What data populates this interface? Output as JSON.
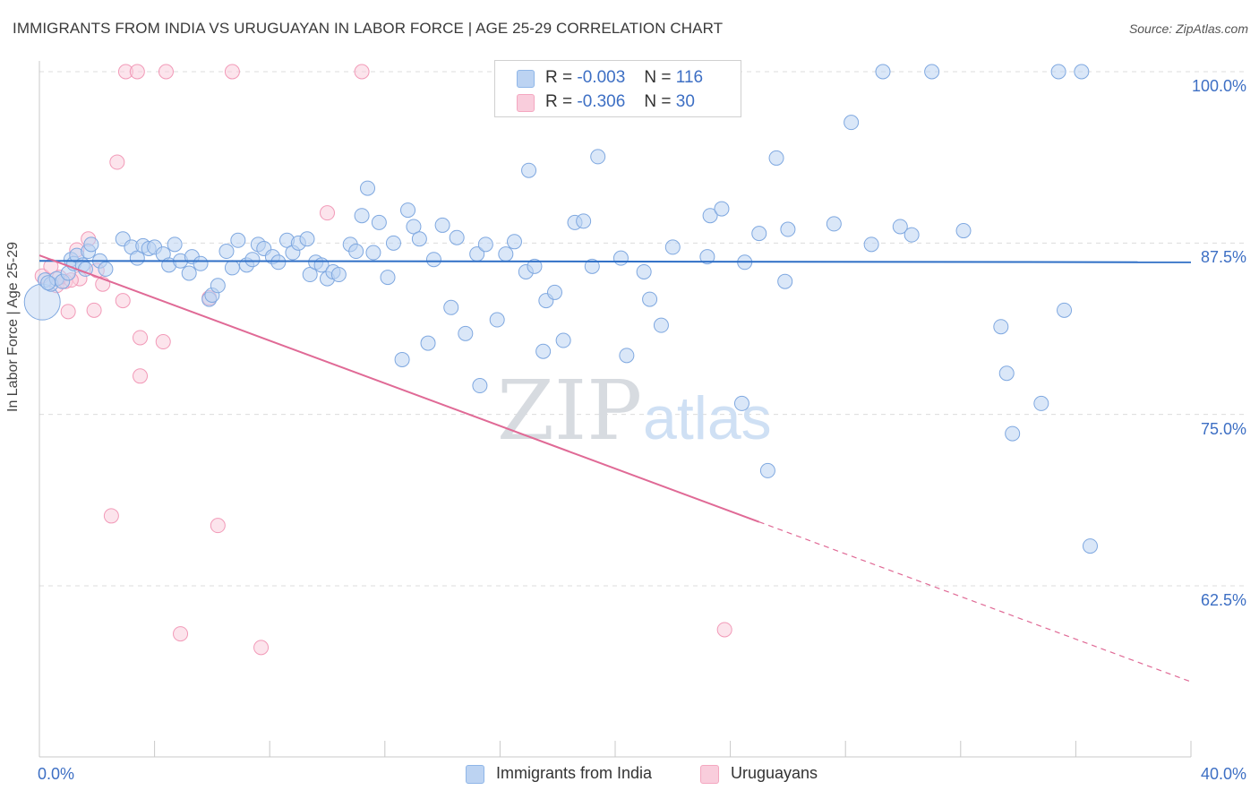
{
  "title": "IMMIGRANTS FROM INDIA VS URUGUAYAN IN LABOR FORCE | AGE 25-29 CORRELATION CHART",
  "source": "Source: ZipAtlas.com",
  "watermark": {
    "zip": "ZIP",
    "atlas": "atlas"
  },
  "legend": {
    "india": {
      "r_label": "R =",
      "r_value": "-0.003",
      "n_label": "N =",
      "n_value": "116"
    },
    "uruguay": {
      "r_label": "R =",
      "r_value": "-0.306",
      "n_label": "N =",
      "n_value": "30"
    }
  },
  "chart_data": {
    "type": "scatter",
    "title": "IMMIGRANTS FROM INDIA VS URUGUAYAN IN LABOR FORCE | AGE 25-29 CORRELATION CHART",
    "xlabel": "",
    "ylabel": "In Labor Force | Age 25-29",
    "xlim": [
      0,
      40
    ],
    "ylim": [
      52,
      101
    ],
    "x_tick_labels": [
      "0.0%",
      "40.0%"
    ],
    "y_ticks": [
      62.5,
      75.0,
      87.5,
      100.0
    ],
    "y_tick_labels": [
      "62.5%",
      "75.0%",
      "87.5%",
      "100.0%"
    ],
    "grid": true,
    "legend_position": "top-center",
    "colors": {
      "india": "#8fb6e8",
      "india_line": "#2f6fc6",
      "uruguay": "#f4a7c0",
      "uruguay_line": "#e06a96",
      "axis_text": "#3d6fc4"
    },
    "series": [
      {
        "name": "Immigrants from India",
        "color": "#8fb6e8",
        "trend": {
          "x": [
            0,
            40
          ],
          "y": [
            86.2,
            86.1
          ],
          "dashed_from": null
        },
        "points": [
          [
            0.1,
            83.2
          ],
          [
            0.2,
            84.8
          ],
          [
            0.4,
            84.5
          ],
          [
            0.6,
            84.9
          ],
          [
            0.8,
            84.7
          ],
          [
            1.0,
            85.3
          ],
          [
            1.1,
            86.3
          ],
          [
            1.2,
            86.0
          ],
          [
            1.3,
            86.6
          ],
          [
            1.5,
            85.9
          ],
          [
            1.6,
            85.6
          ],
          [
            1.7,
            86.9
          ],
          [
            1.8,
            87.4
          ],
          [
            2.1,
            86.2
          ],
          [
            2.3,
            85.6
          ],
          [
            2.9,
            87.8
          ],
          [
            3.2,
            87.2
          ],
          [
            3.4,
            86.4
          ],
          [
            3.6,
            87.3
          ],
          [
            3.8,
            87.1
          ],
          [
            4.0,
            87.2
          ],
          [
            4.3,
            86.7
          ],
          [
            4.5,
            85.9
          ],
          [
            4.7,
            87.4
          ],
          [
            4.9,
            86.2
          ],
          [
            5.2,
            85.3
          ],
          [
            5.3,
            86.5
          ],
          [
            5.6,
            86.0
          ],
          [
            5.9,
            83.4
          ],
          [
            6.0,
            83.7
          ],
          [
            6.2,
            84.4
          ],
          [
            6.5,
            86.9
          ],
          [
            6.7,
            85.7
          ],
          [
            6.9,
            87.7
          ],
          [
            7.2,
            85.9
          ],
          [
            7.4,
            86.3
          ],
          [
            7.6,
            87.4
          ],
          [
            7.8,
            87.1
          ],
          [
            8.1,
            86.5
          ],
          [
            8.3,
            86.1
          ],
          [
            8.6,
            87.7
          ],
          [
            8.8,
            86.8
          ],
          [
            9.0,
            87.5
          ],
          [
            9.3,
            87.8
          ],
          [
            9.4,
            85.2
          ],
          [
            9.6,
            86.1
          ],
          [
            9.8,
            85.9
          ],
          [
            10.0,
            84.9
          ],
          [
            10.2,
            85.4
          ],
          [
            10.4,
            85.2
          ],
          [
            10.8,
            87.4
          ],
          [
            11.0,
            86.9
          ],
          [
            11.2,
            89.5
          ],
          [
            11.4,
            91.5
          ],
          [
            11.6,
            86.8
          ],
          [
            11.8,
            89.0
          ],
          [
            12.1,
            85.0
          ],
          [
            12.3,
            87.5
          ],
          [
            12.6,
            79.0
          ],
          [
            12.8,
            89.9
          ],
          [
            13.0,
            88.7
          ],
          [
            13.2,
            87.8
          ],
          [
            13.5,
            80.2
          ],
          [
            13.7,
            86.3
          ],
          [
            14.0,
            88.8
          ],
          [
            14.3,
            82.8
          ],
          [
            14.5,
            87.9
          ],
          [
            14.8,
            80.9
          ],
          [
            15.2,
            86.7
          ],
          [
            15.3,
            77.1
          ],
          [
            15.5,
            87.4
          ],
          [
            15.9,
            81.9
          ],
          [
            16.2,
            86.7
          ],
          [
            16.5,
            87.6
          ],
          [
            16.9,
            85.4
          ],
          [
            17.0,
            92.8
          ],
          [
            17.2,
            85.8
          ],
          [
            17.5,
            79.6
          ],
          [
            17.6,
            83.3
          ],
          [
            17.9,
            83.9
          ],
          [
            18.2,
            80.4
          ],
          [
            18.6,
            89.0
          ],
          [
            18.9,
            89.1
          ],
          [
            19.2,
            85.8
          ],
          [
            19.4,
            93.8
          ],
          [
            20.2,
            86.4
          ],
          [
            20.4,
            79.3
          ],
          [
            21.0,
            85.4
          ],
          [
            21.2,
            83.4
          ],
          [
            21.6,
            81.5
          ],
          [
            22.0,
            87.2
          ],
          [
            23.2,
            86.5
          ],
          [
            23.3,
            89.5
          ],
          [
            23.7,
            90.0
          ],
          [
            24.4,
            75.8
          ],
          [
            24.5,
            86.1
          ],
          [
            25.0,
            88.2
          ],
          [
            25.3,
            70.9
          ],
          [
            25.6,
            93.7
          ],
          [
            25.9,
            84.7
          ],
          [
            26.0,
            88.5
          ],
          [
            27.6,
            88.9
          ],
          [
            28.2,
            96.3
          ],
          [
            29.3,
            100.0
          ],
          [
            28.9,
            87.4
          ],
          [
            29.9,
            88.7
          ],
          [
            30.3,
            88.1
          ],
          [
            31.0,
            100.0
          ],
          [
            32.1,
            88.4
          ],
          [
            33.4,
            81.4
          ],
          [
            33.6,
            78.0
          ],
          [
            33.8,
            73.6
          ],
          [
            34.8,
            75.8
          ],
          [
            35.4,
            100.0
          ],
          [
            35.6,
            82.6
          ],
          [
            36.2,
            100.0
          ],
          [
            36.5,
            65.4
          ],
          [
            0.3,
            84.6
          ]
        ]
      },
      {
        "name": "Uruguayans",
        "color": "#f4a7c0",
        "trend": {
          "x": [
            0,
            40
          ],
          "y": [
            86.6,
            55.5
          ],
          "dashed_from": 25.0
        },
        "points": [
          [
            0.1,
            85.1
          ],
          [
            0.4,
            85.8
          ],
          [
            0.6,
            84.4
          ],
          [
            0.9,
            84.7
          ],
          [
            1.0,
            82.5
          ],
          [
            1.3,
            87.0
          ],
          [
            1.4,
            84.9
          ],
          [
            1.7,
            87.8
          ],
          [
            1.9,
            82.6
          ],
          [
            2.0,
            85.5
          ],
          [
            2.2,
            84.5
          ],
          [
            2.5,
            67.6
          ],
          [
            2.7,
            93.4
          ],
          [
            2.9,
            83.3
          ],
          [
            3.0,
            100.0
          ],
          [
            3.4,
            100.0
          ],
          [
            3.5,
            80.6
          ],
          [
            3.5,
            77.8
          ],
          [
            4.4,
            100.0
          ],
          [
            4.3,
            80.3
          ],
          [
            4.9,
            59.0
          ],
          [
            5.9,
            83.5
          ],
          [
            6.2,
            66.9
          ],
          [
            6.7,
            100.0
          ],
          [
            7.7,
            58.0
          ],
          [
            10.0,
            89.7
          ],
          [
            11.2,
            100.0
          ],
          [
            23.8,
            59.3
          ],
          [
            0.7,
            85.0
          ],
          [
            1.1,
            84.8
          ]
        ]
      }
    ]
  },
  "x_labels": {
    "left": "0.0%",
    "right": "40.0%"
  },
  "bottom_legend": {
    "india": "Immigrants from India",
    "uruguay": "Uruguayans"
  }
}
